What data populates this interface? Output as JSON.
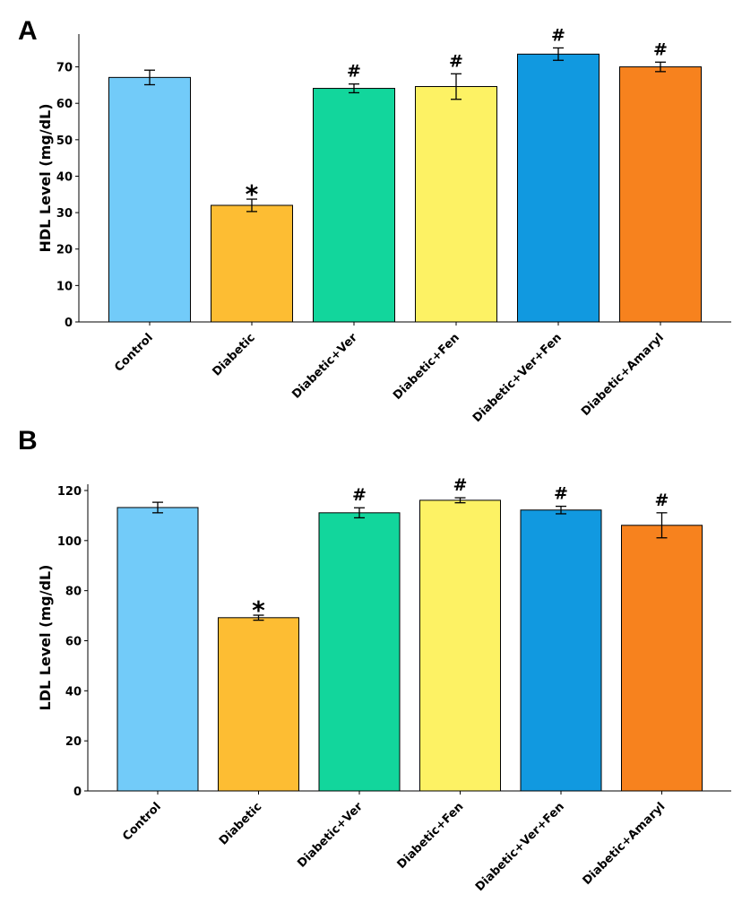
{
  "chart_data": [
    {
      "type": "bar",
      "panel_label": "A",
      "categories": [
        "Control",
        "Diabetic",
        "Diabetic+Ver",
        "Diabetic+Fen",
        "Diabetic+Ver+Fen",
        "Diabetic+Amaryl"
      ],
      "values": [
        67.1,
        32.0,
        64.1,
        64.6,
        73.5,
        70.0
      ],
      "errors": [
        2.0,
        1.7,
        1.2,
        3.5,
        1.7,
        1.3
      ],
      "annotations": [
        "",
        "*",
        "#",
        "#",
        "#",
        "#"
      ],
      "colors": [
        "#72CBF9",
        "#FDBD33",
        "#12D69C",
        "#FDF264",
        "#1199E0",
        "#F7821E"
      ],
      "ylabel": "HDL Level (mg/dL)",
      "xlabel": "",
      "yticks": [
        0,
        10,
        20,
        30,
        40,
        50,
        60,
        70
      ],
      "ylim": [
        0,
        79
      ],
      "grid": false
    },
    {
      "type": "bar",
      "panel_label": "B",
      "categories": [
        "Control",
        "Diabetic",
        "Diabetic+Ver",
        "Diabetic+Fen",
        "Diabetic+Ver+Fen",
        "Diabetic+Amaryl"
      ],
      "values": [
        113.2,
        69.2,
        111.1,
        116.1,
        112.2,
        106.1
      ],
      "errors": [
        2.1,
        1.0,
        2.0,
        1.0,
        1.5,
        5.0
      ],
      "annotations": [
        "",
        "*",
        "#",
        "#",
        "#",
        "#"
      ],
      "colors": [
        "#72CBF9",
        "#FDBD33",
        "#12D69C",
        "#FDF264",
        "#1199E0",
        "#F7821E"
      ],
      "ylabel": "LDL Level (mg/dL)",
      "xlabel": "",
      "yticks": [
        0,
        20,
        40,
        60,
        80,
        100,
        120
      ],
      "ylim": [
        0,
        122.5
      ],
      "grid": false
    }
  ]
}
